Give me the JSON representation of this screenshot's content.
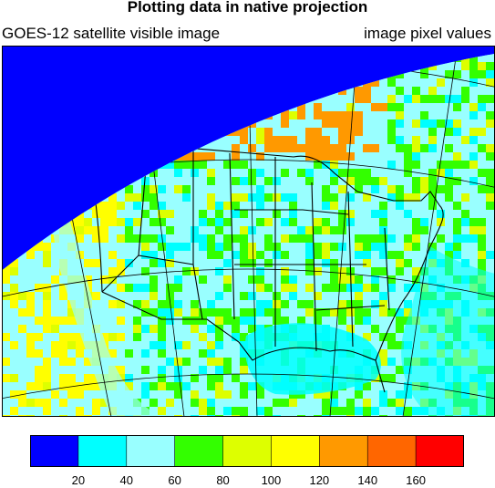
{
  "header": {
    "title": "Plotting data in native projection",
    "left_label": "GOES-12 satellite visible image",
    "right_label": "image pixel values"
  },
  "colorbar": {
    "colors": [
      "#0000ff",
      "#00ffff",
      "#99ffff",
      "#33ff00",
      "#ddff00",
      "#ffff00",
      "#ff9900",
      "#ff6600",
      "#ff0000"
    ],
    "boundaries": [
      20,
      40,
      60,
      80,
      100,
      120,
      140,
      160
    ],
    "labels": [
      "20",
      "40",
      "60",
      "80",
      "100",
      "120",
      "140",
      "160"
    ]
  },
  "map": {
    "space_color": "#0000ff",
    "ocean_color": "#99ffff",
    "land_colors": [
      "#99ffff",
      "#00ffff",
      "#33ff00",
      "#ddff00",
      "#ffff00",
      "#ff9900"
    ]
  }
}
